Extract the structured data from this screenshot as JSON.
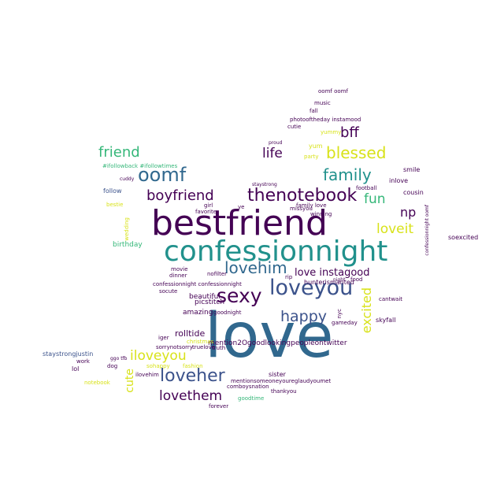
{
  "palette": {
    "dark_purple": "#440154",
    "indigo": "#3b528b",
    "blue": "#31688e",
    "teal": "#21918c",
    "green": "#35b779",
    "lime": "#90d743",
    "yellow": "#d8e219",
    "deep_blue": "#2c728e"
  },
  "words": [
    {
      "id": "love",
      "text": "love",
      "color": "#31688e"
    },
    {
      "id": "bestfriend",
      "text": "bestfriend",
      "color": "#440154"
    },
    {
      "id": "confessionnight",
      "text": "confessionnight",
      "color": "#21918c"
    },
    {
      "id": "loveyou",
      "text": "loveyou",
      "color": "#3b528b"
    },
    {
      "id": "thenotebook",
      "text": "thenotebook",
      "color": "#440154"
    },
    {
      "id": "sexy",
      "text": "sexy",
      "color": "#440154"
    },
    {
      "id": "oomf",
      "text": "oomf",
      "color": "#31688e"
    },
    {
      "id": "lovehim",
      "text": "lovehim",
      "color": "#31688e"
    },
    {
      "id": "loveher",
      "text": "loveher",
      "color": "#3b528b"
    },
    {
      "id": "blessed",
      "text": "blessed",
      "color": "#d8e219"
    },
    {
      "id": "family",
      "text": "family",
      "color": "#21918c"
    },
    {
      "id": "boyfriend",
      "text": "boyfriend",
      "color": "#440154"
    },
    {
      "id": "happy",
      "text": "happy",
      "color": "#3b528b"
    },
    {
      "id": "iloveyou",
      "text": "iloveyou",
      "color": "#d8e219"
    },
    {
      "id": "lovethem",
      "text": "lovethem",
      "color": "#440154"
    },
    {
      "id": "friend",
      "text": "friend",
      "color": "#35b779"
    },
    {
      "id": "bff",
      "text": "bff",
      "color": "#440154"
    },
    {
      "id": "life",
      "text": "life",
      "color": "#440154"
    },
    {
      "id": "fun",
      "text": "fun",
      "color": "#35b779"
    },
    {
      "id": "np",
      "text": "np",
      "color": "#440154"
    },
    {
      "id": "loveit",
      "text": "loveit",
      "color": "#d8e219"
    },
    {
      "id": "love_instagood",
      "text": "love instagood",
      "color": "#440154"
    },
    {
      "id": "excited",
      "text": "excited",
      "color": "#d8e219"
    },
    {
      "id": "cute",
      "text": "cute",
      "color": "#d8e219"
    },
    {
      "id": "amazing",
      "text": "amazing",
      "color": "#440154"
    },
    {
      "id": "beautiful",
      "text": "beautiful",
      "color": "#440154"
    },
    {
      "id": "picstitch",
      "text": "picstitch",
      "color": "#440154"
    },
    {
      "id": "rolltide",
      "text": "rolltide",
      "color": "#440154"
    },
    {
      "id": "mention2good",
      "text": "mention2Ogoodlookingpeopleontwitter",
      "color": "#440154"
    },
    {
      "id": "follow4follow",
      "text": "#ifollowback #ifollowtimes",
      "color": "#35b779"
    },
    {
      "id": "follow",
      "text": "follow",
      "color": "#3b528b"
    },
    {
      "id": "yum",
      "text": "yum",
      "color": "#d8e219"
    },
    {
      "id": "yummy",
      "text": "yummy",
      "color": "#d8e219"
    },
    {
      "id": "birthday",
      "text": "birthday",
      "color": "#35b779"
    },
    {
      "id": "movie",
      "text": "movie",
      "color": "#440154"
    },
    {
      "id": "dinner",
      "text": "dinner",
      "color": "#440154"
    },
    {
      "id": "nofilter",
      "text": "nofilter",
      "color": "#440154"
    },
    {
      "id": "socute",
      "text": "socute",
      "color": "#440154"
    },
    {
      "id": "goodnight",
      "text": "goodnight",
      "color": "#440154"
    },
    {
      "id": "confessionnight_pair",
      "text": "confessionnight confessionnight",
      "color": "#440154"
    },
    {
      "id": "hunterismanted",
      "text": "hunterismanted",
      "color": "#440154"
    },
    {
      "id": "staystrongjustin",
      "text": "staystrongjustin",
      "color": "#3b528b"
    },
    {
      "id": "lol",
      "text": "lol",
      "color": "#440154"
    },
    {
      "id": "work",
      "text": "work",
      "color": "#440154"
    },
    {
      "id": "dog",
      "text": "dog",
      "color": "#440154"
    },
    {
      "id": "christmas",
      "text": "christmas",
      "color": "#d8e219"
    },
    {
      "id": "sorrynotsorry",
      "text": "sorrynotsorry",
      "color": "#440154"
    },
    {
      "id": "truelove",
      "text": "truelove",
      "color": "#440154"
    },
    {
      "id": "iger",
      "text": "iger",
      "color": "#440154"
    },
    {
      "id": "fashion",
      "text": "fashion",
      "color": "#d8e219"
    },
    {
      "id": "sohappy",
      "text": "sohappy",
      "color": "#d8e219"
    },
    {
      "id": "ilovehim",
      "text": "ilovehim",
      "color": "#440154"
    },
    {
      "id": "sister",
      "text": "sister",
      "color": "#440154"
    },
    {
      "id": "mentionsomeone",
      "text": "mentionsomeoneyoureglaudyoumet",
      "color": "#440154"
    },
    {
      "id": "comboysnation",
      "text": "comboysnation",
      "color": "#440154"
    },
    {
      "id": "thankyou",
      "text": "thankyou",
      "color": "#440154"
    },
    {
      "id": "forever",
      "text": "forever",
      "color": "#440154"
    },
    {
      "id": "goodtime",
      "text": "goodtime",
      "color": "#35b779"
    },
    {
      "id": "truth",
      "text": "truth",
      "color": "#440154"
    },
    {
      "id": "skyfall",
      "text": "skyfall",
      "color": "#440154"
    },
    {
      "id": "gameday",
      "text": "gameday",
      "color": "#440154"
    },
    {
      "id": "cantwait",
      "text": "cantwait",
      "color": "#440154"
    },
    {
      "id": "soexcited",
      "text": "soexcited",
      "color": "#440154"
    },
    {
      "id": "cousin",
      "text": "cousin",
      "color": "#440154"
    },
    {
      "id": "inlove",
      "text": "inlove",
      "color": "#440154"
    },
    {
      "id": "smile",
      "text": "smile",
      "color": "#440154"
    },
    {
      "id": "football",
      "text": "football",
      "color": "#440154"
    },
    {
      "id": "party",
      "text": "party",
      "color": "#d8e219"
    },
    {
      "id": "cutie",
      "text": "cutie",
      "color": "#440154"
    },
    {
      "id": "photooftheday",
      "text": "photooftheday instamood",
      "color": "#440154"
    },
    {
      "id": "music",
      "text": "music",
      "color": "#440154"
    },
    {
      "id": "fall",
      "text": "fall",
      "color": "#440154"
    },
    {
      "id": "oomf_oomf",
      "text": "oomf oomf",
      "color": "#440154"
    },
    {
      "id": "favorite",
      "text": "favorite",
      "color": "#440154"
    },
    {
      "id": "girl",
      "text": "girl",
      "color": "#440154"
    },
    {
      "id": "ye",
      "text": "ye",
      "color": "#440154"
    },
    {
      "id": "missyou",
      "text": "missyou",
      "color": "#440154"
    },
    {
      "id": "family_love",
      "text": "family love",
      "color": "#440154"
    },
    {
      "id": "winning",
      "text": "winning",
      "color": "#440154"
    },
    {
      "id": "rip",
      "text": "rip",
      "color": "#440154"
    },
    {
      "id": "food",
      "text": "food",
      "color": "#440154"
    },
    {
      "id": "night",
      "text": "night",
      "color": "#440154"
    },
    {
      "id": "nyc",
      "text": "nyc",
      "color": "#440154"
    },
    {
      "id": "bestie",
      "text": "bestie",
      "color": "#d8e219"
    },
    {
      "id": "notebook",
      "text": "notebook",
      "color": "#d8e219"
    },
    {
      "id": "wedding",
      "text": "wedding",
      "color": "#d8e219"
    },
    {
      "id": "ggo_tfb",
      "text": "ggo tfb",
      "color": "#440154"
    },
    {
      "id": "confession_v",
      "text": "confessionnight oomf",
      "color": "#440154"
    },
    {
      "id": "staystrong",
      "text": "staystrong",
      "color": "#440154"
    },
    {
      "id": "proud",
      "text": "proud",
      "color": "#440154"
    },
    {
      "id": "cuddy",
      "text": "cuddy",
      "color": "#440154"
    }
  ]
}
